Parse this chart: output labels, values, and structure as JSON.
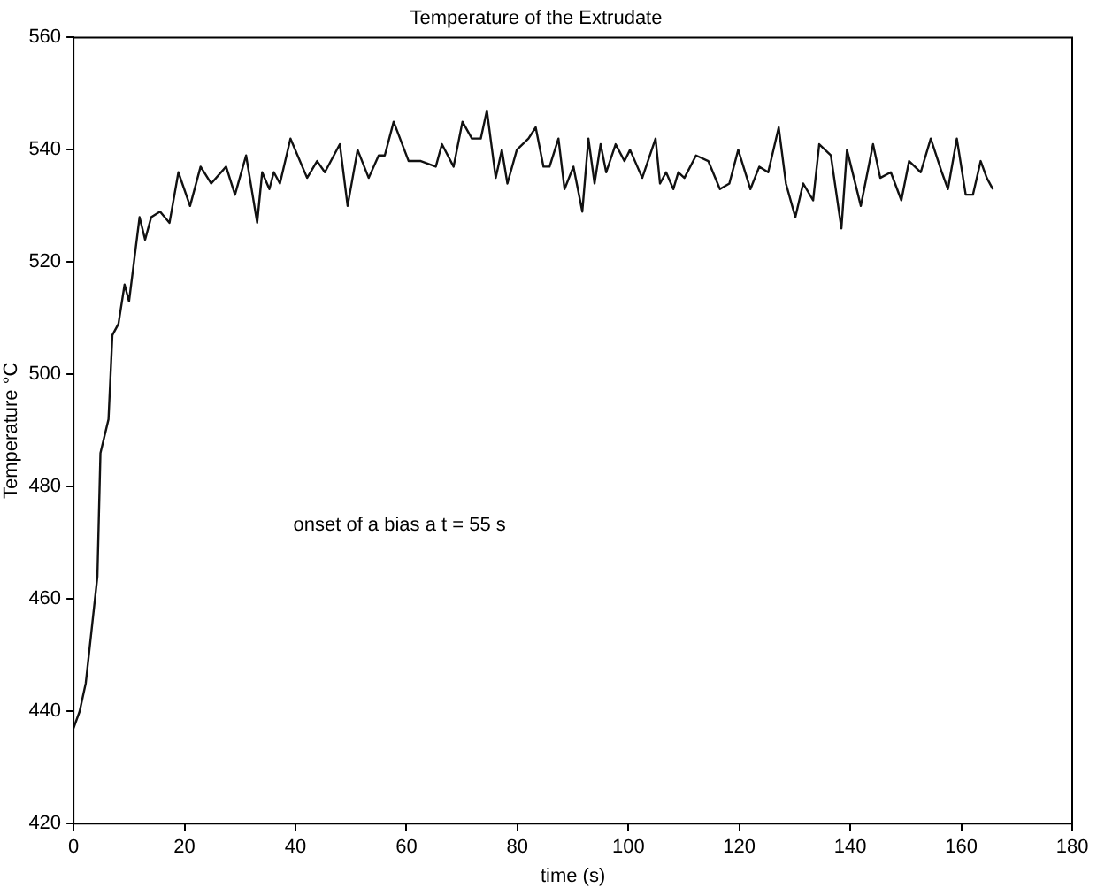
{
  "chart_data": {
    "type": "line",
    "title": "Temperature of the Extrudate",
    "xlabel": "time (s)",
    "ylabel": "Temperature °C",
    "annotations": [
      "onset of a bias a t = 55 s"
    ],
    "x": [
      0,
      1.1,
      2.2,
      3.2,
      4.3,
      4.85,
      6.3,
      7,
      8.1,
      9.2,
      10,
      11.9,
      12.9,
      14,
      15.6,
      17.3,
      18.9,
      21,
      22.9,
      24.8,
      27.5,
      29.1,
      31.1,
      33.1,
      34,
      35.3,
      36.1,
      37.2,
      39.1,
      42.1,
      43.9,
      45.3,
      48,
      49.4,
      51.2,
      53.2,
      55,
      56.1,
      57.7,
      60.4,
      62.6,
      65.3,
      66.4,
      68.5,
      70.1,
      71.8,
      73.4,
      74.5,
      76.1,
      77.2,
      78.2,
      79.9,
      82,
      83.3,
      84.7,
      85.8,
      87.4,
      88.5,
      90.1,
      91.7,
      92.8,
      93.9,
      95,
      96,
      97.7,
      99.3,
      100.3,
      102.5,
      104.9,
      105.7,
      106.8,
      108.1,
      109,
      110.1,
      112.2,
      114.4,
      116.5,
      118.2,
      119.8,
      122,
      123.6,
      125.2,
      127.1,
      128.4,
      130.1,
      131.5,
      133.3,
      134.4,
      136.5,
      138.4,
      139.4,
      141.9,
      144.1,
      145.4,
      147.3,
      149.2,
      150.6,
      152.7,
      154.5,
      156.5,
      157.6,
      159.2,
      160.8,
      162.1,
      163.5,
      164.6,
      165.7
    ],
    "series": [
      {
        "color": "#111111",
        "values": [
          437,
          440,
          445,
          454,
          464,
          486,
          492,
          507,
          509,
          516,
          513,
          528,
          524,
          528,
          529,
          527,
          536,
          530,
          537,
          534,
          537,
          532,
          539,
          527,
          536,
          533,
          536,
          534,
          542,
          535,
          538,
          536,
          541,
          530,
          540,
          535,
          539,
          539,
          545,
          538,
          538,
          537,
          541,
          537,
          545,
          542,
          542,
          547,
          535,
          540,
          534,
          540,
          542,
          544,
          537,
          537,
          542,
          533,
          537,
          529,
          542,
          534,
          541,
          536,
          541,
          538,
          540,
          535,
          542,
          534,
          536,
          533,
          536,
          535,
          539,
          538,
          533,
          534,
          540,
          533,
          537,
          536,
          544,
          534,
          528,
          534,
          531,
          541,
          539,
          526,
          540,
          530,
          541,
          535,
          536,
          531,
          538,
          536,
          542,
          536,
          533,
          542,
          532,
          532,
          538,
          535,
          533
        ]
      }
    ],
    "xlim": [
      0,
      180
    ],
    "xticks": [
      0,
      20,
      40,
      60,
      80,
      100,
      120,
      140,
      160,
      180
    ],
    "ylim": [
      420,
      560
    ],
    "yticks": [
      420,
      440,
      460,
      480,
      500,
      520,
      540,
      560
    ],
    "grid": false,
    "legend": false,
    "marker": "none",
    "line_style": "solid"
  }
}
